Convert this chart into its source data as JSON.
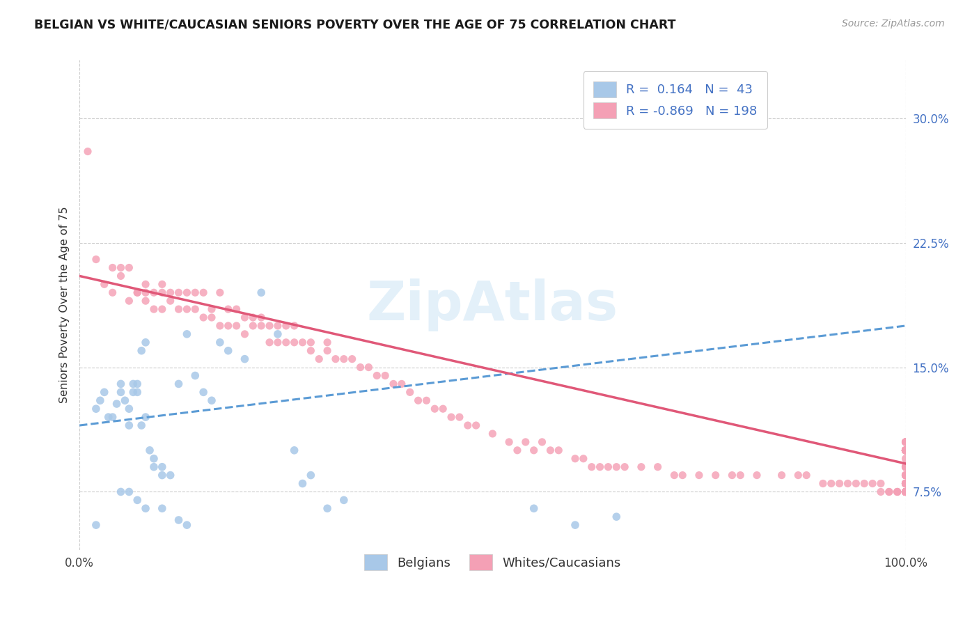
{
  "title": "BELGIAN VS WHITE/CAUCASIAN SENIORS POVERTY OVER THE AGE OF 75 CORRELATION CHART",
  "source": "Source: ZipAtlas.com",
  "ylabel": "Seniors Poverty Over the Age of 75",
  "ytick_labels": [
    "7.5%",
    "15.0%",
    "22.5%",
    "30.0%"
  ],
  "ytick_values": [
    0.075,
    0.15,
    0.225,
    0.3
  ],
  "xlim": [
    0.0,
    1.0
  ],
  "ylim": [
    0.04,
    0.335
  ],
  "color_blue": "#a8c8e8",
  "color_pink": "#f4a0b5",
  "line_blue": "#5b9bd5",
  "line_pink": "#e05878",
  "watermark": "ZipAtlas",
  "belgians_x": [
    0.02,
    0.025,
    0.03,
    0.035,
    0.04,
    0.045,
    0.05,
    0.05,
    0.055,
    0.06,
    0.06,
    0.065,
    0.065,
    0.07,
    0.07,
    0.075,
    0.075,
    0.08,
    0.08,
    0.085,
    0.09,
    0.09,
    0.1,
    0.1,
    0.11,
    0.12,
    0.13,
    0.14,
    0.15,
    0.16,
    0.17,
    0.18,
    0.2,
    0.22,
    0.24,
    0.26,
    0.27,
    0.28,
    0.3,
    0.32,
    0.55,
    0.6,
    0.65
  ],
  "belgians_y": [
    0.125,
    0.13,
    0.135,
    0.12,
    0.12,
    0.128,
    0.135,
    0.14,
    0.13,
    0.125,
    0.115,
    0.14,
    0.135,
    0.135,
    0.14,
    0.115,
    0.16,
    0.12,
    0.165,
    0.1,
    0.095,
    0.09,
    0.085,
    0.09,
    0.085,
    0.14,
    0.17,
    0.145,
    0.135,
    0.13,
    0.165,
    0.16,
    0.155,
    0.195,
    0.17,
    0.1,
    0.08,
    0.085,
    0.065,
    0.07,
    0.065,
    0.055,
    0.06
  ],
  "belgians_low_x": [
    0.02,
    0.05,
    0.06,
    0.07,
    0.08,
    0.1,
    0.12,
    0.13
  ],
  "belgians_low_y": [
    0.055,
    0.075,
    0.075,
    0.07,
    0.065,
    0.065,
    0.058,
    0.055
  ],
  "whites_x": [
    0.01,
    0.02,
    0.03,
    0.04,
    0.04,
    0.05,
    0.05,
    0.06,
    0.06,
    0.07,
    0.07,
    0.08,
    0.08,
    0.08,
    0.09,
    0.09,
    0.1,
    0.1,
    0.1,
    0.11,
    0.11,
    0.12,
    0.12,
    0.13,
    0.13,
    0.14,
    0.14,
    0.15,
    0.15,
    0.16,
    0.16,
    0.17,
    0.17,
    0.18,
    0.18,
    0.19,
    0.19,
    0.2,
    0.2,
    0.21,
    0.21,
    0.22,
    0.22,
    0.23,
    0.23,
    0.24,
    0.24,
    0.25,
    0.25,
    0.26,
    0.26,
    0.27,
    0.28,
    0.28,
    0.29,
    0.3,
    0.3,
    0.31,
    0.32,
    0.33,
    0.34,
    0.35,
    0.36,
    0.37,
    0.38,
    0.39,
    0.4,
    0.41,
    0.42,
    0.43,
    0.44,
    0.45,
    0.46,
    0.47,
    0.48,
    0.5,
    0.52,
    0.53,
    0.54,
    0.55,
    0.56,
    0.57,
    0.58,
    0.6,
    0.61,
    0.62,
    0.63,
    0.64,
    0.65,
    0.66,
    0.68,
    0.7,
    0.72,
    0.73,
    0.75,
    0.77,
    0.79,
    0.8,
    0.82,
    0.85,
    0.87,
    0.88,
    0.9,
    0.91,
    0.92,
    0.93,
    0.94,
    0.95,
    0.96,
    0.97,
    0.97,
    0.98,
    0.98,
    0.99,
    0.99,
    0.99,
    1.0,
    1.0,
    1.0,
    1.0,
    1.0,
    1.0,
    1.0,
    1.0,
    1.0,
    1.0,
    1.0,
    1.0,
    1.0,
    1.0,
    1.0,
    1.0,
    1.0,
    1.0,
    1.0,
    1.0,
    1.0,
    1.0,
    1.0,
    1.0,
    1.0,
    1.0,
    1.0,
    1.0,
    1.0,
    1.0,
    1.0,
    1.0,
    1.0,
    1.0,
    1.0,
    1.0,
    1.0,
    1.0,
    1.0,
    1.0,
    1.0,
    1.0,
    1.0,
    1.0,
    1.0,
    1.0,
    1.0,
    1.0,
    1.0,
    1.0,
    1.0,
    1.0,
    1.0,
    1.0,
    1.0,
    1.0,
    1.0,
    1.0,
    1.0,
    1.0,
    1.0,
    1.0,
    1.0,
    1.0,
    1.0,
    1.0,
    1.0,
    1.0,
    1.0,
    1.0,
    1.0,
    1.0,
    1.0,
    1.0,
    1.0,
    1.0,
    1.0
  ],
  "whites_y": [
    0.28,
    0.215,
    0.2,
    0.21,
    0.195,
    0.205,
    0.21,
    0.19,
    0.21,
    0.195,
    0.195,
    0.19,
    0.195,
    0.2,
    0.195,
    0.185,
    0.195,
    0.185,
    0.2,
    0.195,
    0.19,
    0.185,
    0.195,
    0.195,
    0.185,
    0.185,
    0.195,
    0.18,
    0.195,
    0.18,
    0.185,
    0.175,
    0.195,
    0.175,
    0.185,
    0.175,
    0.185,
    0.17,
    0.18,
    0.18,
    0.175,
    0.175,
    0.18,
    0.165,
    0.175,
    0.165,
    0.175,
    0.165,
    0.175,
    0.165,
    0.175,
    0.165,
    0.16,
    0.165,
    0.155,
    0.16,
    0.165,
    0.155,
    0.155,
    0.155,
    0.15,
    0.15,
    0.145,
    0.145,
    0.14,
    0.14,
    0.135,
    0.13,
    0.13,
    0.125,
    0.125,
    0.12,
    0.12,
    0.115,
    0.115,
    0.11,
    0.105,
    0.1,
    0.105,
    0.1,
    0.105,
    0.1,
    0.1,
    0.095,
    0.095,
    0.09,
    0.09,
    0.09,
    0.09,
    0.09,
    0.09,
    0.09,
    0.085,
    0.085,
    0.085,
    0.085,
    0.085,
    0.085,
    0.085,
    0.085,
    0.085,
    0.085,
    0.08,
    0.08,
    0.08,
    0.08,
    0.08,
    0.08,
    0.08,
    0.08,
    0.075,
    0.075,
    0.075,
    0.075,
    0.075,
    0.075,
    0.075,
    0.075,
    0.075,
    0.075,
    0.075,
    0.075,
    0.075,
    0.075,
    0.075,
    0.075,
    0.075,
    0.075,
    0.075,
    0.075,
    0.075,
    0.08,
    0.08,
    0.08,
    0.08,
    0.08,
    0.08,
    0.08,
    0.08,
    0.08,
    0.085,
    0.085,
    0.085,
    0.085,
    0.085,
    0.085,
    0.085,
    0.09,
    0.09,
    0.09,
    0.09,
    0.09,
    0.09,
    0.09,
    0.095,
    0.1,
    0.1,
    0.1,
    0.1,
    0.1,
    0.105,
    0.1,
    0.105,
    0.1,
    0.105,
    0.1,
    0.105,
    0.1,
    0.105,
    0.1,
    0.1,
    0.1,
    0.1,
    0.1,
    0.1,
    0.1,
    0.1,
    0.1,
    0.1,
    0.1,
    0.1,
    0.1,
    0.1,
    0.1,
    0.1,
    0.1,
    0.1,
    0.1,
    0.1,
    0.1,
    0.1,
    0.1,
    0.1
  ],
  "blue_line_x": [
    0.0,
    1.0
  ],
  "blue_line_y": [
    0.115,
    0.175
  ],
  "pink_line_x": [
    0.0,
    1.0
  ],
  "pink_line_y": [
    0.205,
    0.092
  ]
}
